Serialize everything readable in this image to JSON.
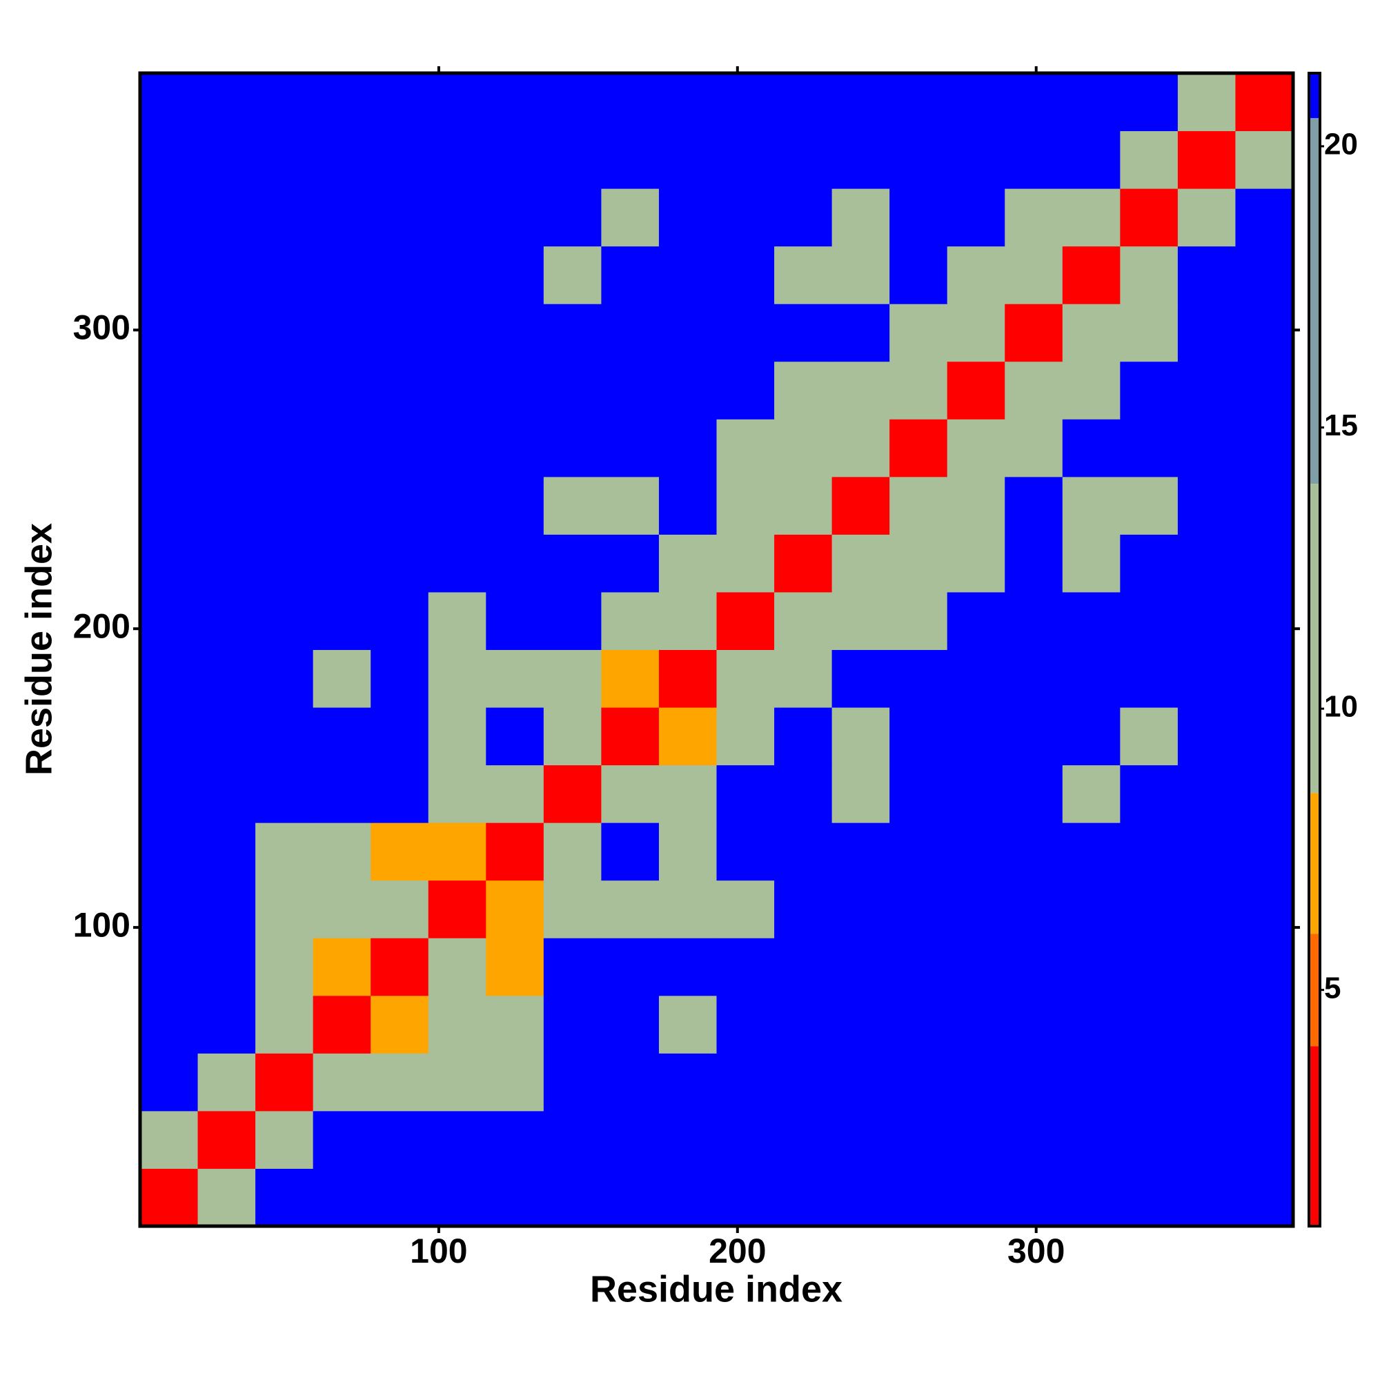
{
  "chart_data": {
    "type": "heatmap",
    "x_label": "Residue index",
    "y_label": "Residue index",
    "xlim": [
      0,
      386
    ],
    "ylim": [
      0,
      386
    ],
    "xticks": [
      100,
      200,
      300
    ],
    "yticks": [
      100,
      200,
      300
    ],
    "clim": [
      0.8,
      21.3
    ],
    "cticks": [
      5,
      10,
      15,
      20
    ],
    "colorscale": [
      [
        0,
        "#ff0000"
      ],
      [
        4,
        "#ff6a00"
      ],
      [
        6,
        "#ffa500"
      ],
      [
        8.5,
        "#a9bf9a"
      ],
      [
        14,
        "#7f9fa8"
      ],
      [
        20.5,
        "#0000ff"
      ]
    ],
    "z": [
      [
        3,
        11,
        21,
        21,
        21,
        21,
        21,
        21,
        21,
        21,
        21,
        21,
        21,
        21,
        21,
        21,
        21,
        21,
        21,
        21
      ],
      [
        11,
        3,
        11,
        21,
        21,
        21,
        21,
        21,
        21,
        21,
        21,
        21,
        21,
        21,
        21,
        21,
        21,
        21,
        21,
        21
      ],
      [
        21,
        11,
        3,
        11,
        11,
        11,
        11,
        21,
        21,
        21,
        21,
        21,
        21,
        21,
        21,
        21,
        21,
        21,
        21,
        21
      ],
      [
        21,
        21,
        11,
        3,
        7,
        11,
        11,
        21,
        21,
        11,
        21,
        21,
        21,
        21,
        21,
        21,
        21,
        21,
        21,
        21
      ],
      [
        21,
        21,
        11,
        7,
        3,
        11,
        7,
        21,
        21,
        21,
        21,
        21,
        21,
        21,
        21,
        21,
        21,
        21,
        21,
        21
      ],
      [
        21,
        21,
        11,
        11,
        11,
        3,
        7,
        11,
        11,
        11,
        11,
        21,
        21,
        21,
        21,
        21,
        21,
        21,
        21,
        21
      ],
      [
        21,
        21,
        11,
        11,
        7,
        7,
        3,
        11,
        21,
        11,
        21,
        21,
        21,
        21,
        21,
        21,
        21,
        21,
        21,
        21
      ],
      [
        21,
        21,
        21,
        21,
        21,
        11,
        11,
        3,
        11,
        11,
        21,
        21,
        11,
        21,
        21,
        21,
        11,
        21,
        21,
        21
      ],
      [
        21,
        21,
        21,
        21,
        21,
        11,
        21,
        11,
        3,
        7,
        11,
        21,
        11,
        21,
        21,
        21,
        21,
        11,
        21,
        21
      ],
      [
        21,
        21,
        21,
        11,
        21,
        11,
        11,
        11,
        7,
        3,
        11,
        11,
        21,
        21,
        21,
        21,
        21,
        21,
        21,
        21
      ],
      [
        21,
        21,
        21,
        21,
        21,
        11,
        21,
        21,
        11,
        11,
        3,
        11,
        11,
        11,
        21,
        21,
        21,
        21,
        21,
        21
      ],
      [
        21,
        21,
        21,
        21,
        21,
        21,
        21,
        21,
        21,
        11,
        11,
        3,
        11,
        11,
        11,
        21,
        11,
        21,
        21,
        21
      ],
      [
        21,
        21,
        21,
        21,
        21,
        21,
        21,
        11,
        11,
        21,
        11,
        11,
        3,
        11,
        11,
        21,
        11,
        11,
        21,
        21
      ],
      [
        21,
        21,
        21,
        21,
        21,
        21,
        21,
        21,
        21,
        21,
        11,
        11,
        11,
        3,
        11,
        11,
        21,
        21,
        21,
        21
      ],
      [
        21,
        21,
        21,
        21,
        21,
        21,
        21,
        21,
        21,
        21,
        21,
        11,
        11,
        11,
        3,
        11,
        11,
        21,
        21,
        21
      ],
      [
        21,
        21,
        21,
        21,
        21,
        21,
        21,
        21,
        21,
        21,
        21,
        21,
        21,
        11,
        11,
        3,
        11,
        11,
        21,
        21
      ],
      [
        21,
        21,
        21,
        21,
        21,
        21,
        21,
        11,
        21,
        21,
        21,
        11,
        11,
        21,
        11,
        11,
        3,
        11,
        21,
        21
      ],
      [
        21,
        21,
        21,
        21,
        21,
        21,
        21,
        21,
        11,
        21,
        21,
        21,
        11,
        21,
        21,
        11,
        11,
        3,
        11,
        21
      ],
      [
        21,
        21,
        21,
        21,
        21,
        21,
        21,
        21,
        21,
        21,
        21,
        21,
        21,
        21,
        21,
        21,
        21,
        11,
        3,
        11
      ],
      [
        21,
        21,
        21,
        21,
        21,
        21,
        21,
        21,
        21,
        21,
        21,
        21,
        21,
        21,
        21,
        21,
        21,
        21,
        11,
        3
      ]
    ]
  }
}
